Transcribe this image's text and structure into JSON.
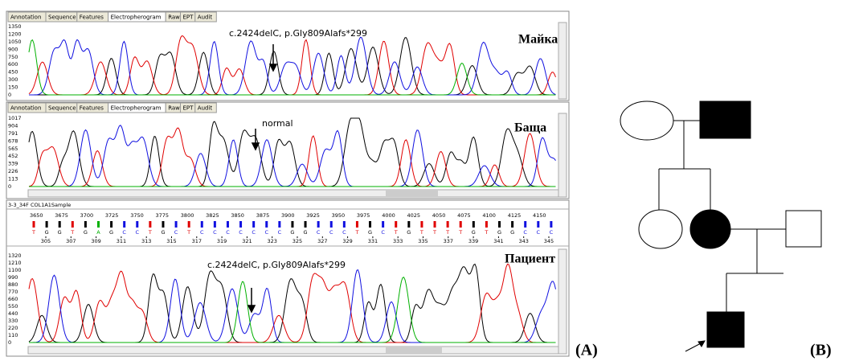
{
  "panels": [
    {
      "tabs": [
        "Annotation",
        "Sequence",
        "Features",
        "Electropherogram",
        "Raw",
        "EPT",
        "Audit"
      ],
      "yticks": [
        1350,
        1200,
        1050,
        900,
        750,
        600,
        450,
        300,
        150,
        0
      ],
      "annotation": "c.2424delC, p.Gly809Alafs*299",
      "label": "Майка"
    },
    {
      "tabs": [
        "Annotation",
        "Sequence",
        "Features",
        "Electropherogram",
        "Raw",
        "EPT",
        "Audit"
      ],
      "yticks": [
        1017,
        904,
        791,
        678,
        565,
        452,
        339,
        226,
        113,
        0
      ],
      "annotation": "normal",
      "label": "Баща"
    },
    {
      "header": "3-3_34F COL1A1Sample",
      "positions": [
        3650,
        3675,
        3700,
        3725,
        3750,
        3775,
        3800,
        3825,
        3850,
        3875,
        3900,
        3925,
        3950,
        3975,
        4000,
        4025,
        4050,
        4075,
        4100,
        4125,
        4150
      ],
      "bases": [
        "T",
        "G",
        "G",
        "T",
        "G",
        "A",
        "G",
        "C",
        "C",
        "T",
        "G",
        "C",
        "T",
        "C",
        "C",
        "C",
        "C",
        "C",
        "C",
        "C",
        "G",
        "G",
        "C",
        "C",
        "C",
        "T",
        "G",
        "C",
        "T",
        "G",
        "T",
        "T",
        "T",
        "T",
        "G",
        "T",
        "G",
        "G",
        "C",
        "C",
        "C"
      ],
      "base_numbers": [
        305,
        307,
        309,
        311,
        313,
        315,
        317,
        319,
        321,
        323,
        325,
        327,
        329,
        331,
        333,
        335,
        337,
        339,
        341,
        343,
        345
      ],
      "yticks": [
        1320,
        1210,
        1100,
        990,
        880,
        770,
        660,
        550,
        440,
        330,
        220,
        110,
        0
      ],
      "annotation": "c.2424delC, p.Gly809Alafs*299",
      "label": "Пациент"
    }
  ],
  "figure_labels": [
    "(A)",
    "(B)"
  ]
}
